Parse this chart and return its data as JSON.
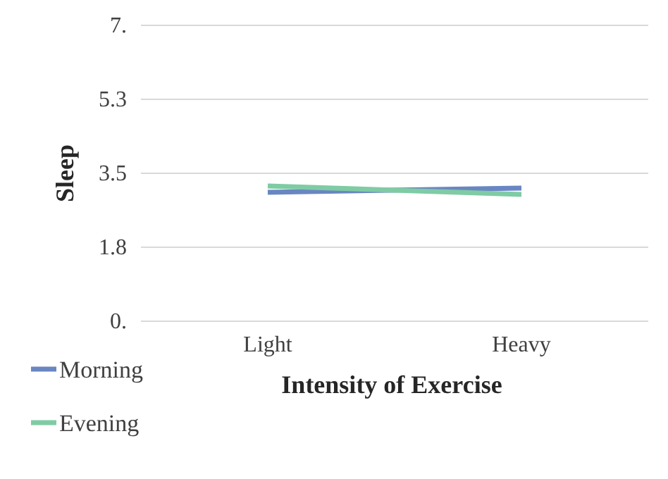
{
  "chart_data": {
    "type": "line",
    "xlabel": "Intensity of Exercise",
    "ylabel": "Sleep",
    "categories": [
      "Light",
      "Heavy"
    ],
    "series": [
      {
        "name": "Morning",
        "color": "#6a86c2",
        "values": [
          3.05,
          3.15
        ]
      },
      {
        "name": "Evening",
        "color": "#7fcba4",
        "values": [
          3.2,
          3.0
        ]
      }
    ],
    "ylim": [
      0,
      7
    ],
    "yticks": [
      {
        "value": 7,
        "label": "7."
      },
      {
        "value": 5.25,
        "label": "5.3"
      },
      {
        "value": 3.5,
        "label": "3.5"
      },
      {
        "value": 1.75,
        "label": "1.8"
      },
      {
        "value": 0,
        "label": "0."
      }
    ],
    "grid": "y",
    "legend": "bottom left",
    "marker": "none",
    "line_style": "solid"
  }
}
